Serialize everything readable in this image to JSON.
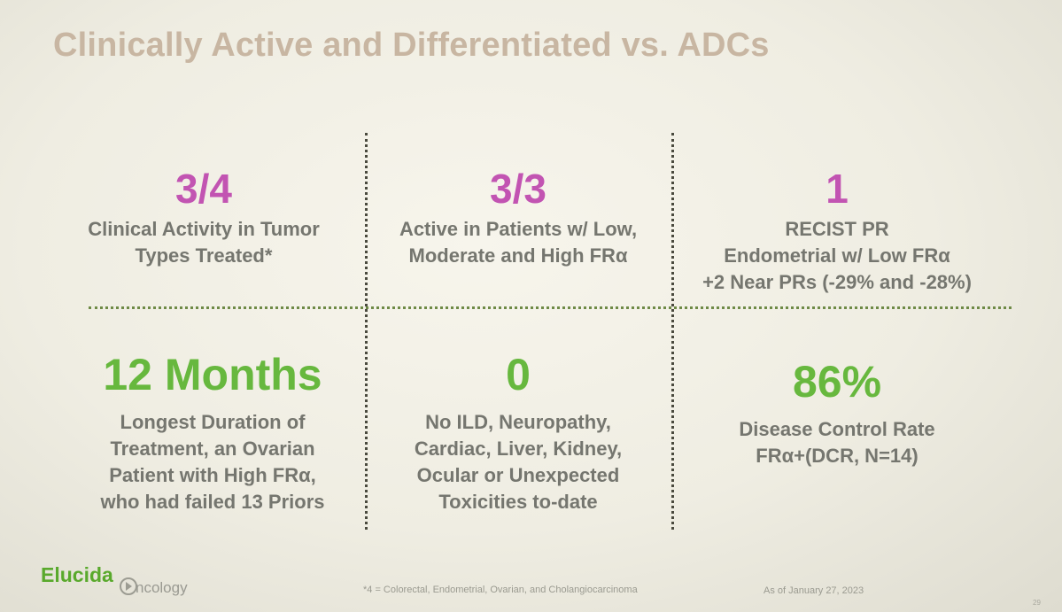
{
  "slide": {
    "title": "Clinically Active and Differentiated vs. ADCs",
    "stats": [
      {
        "value": "3/4",
        "color": "#c254b2",
        "lines": [
          "Clinical Activity in Tumor",
          "Types Treated*"
        ]
      },
      {
        "value": "3/3",
        "color": "#c254b2",
        "lines": [
          "Active in Patients w/ Low,",
          "Moderate and High FRα"
        ]
      },
      {
        "value": "1",
        "color": "#c254b2",
        "lines": [
          "RECIST PR",
          "Endometrial w/ Low FRα",
          "+2 Near PRs (-29% and -28%)"
        ]
      },
      {
        "value": "12 Months",
        "color": "#67b83e",
        "lines": [
          "Longest Duration of",
          "Treatment, an Ovarian",
          "Patient with High FRα,",
          "who had failed 13 Priors"
        ]
      },
      {
        "value": "0",
        "color": "#67b83e",
        "lines": [
          "No ILD, Neuropathy,",
          "Cardiac, Liver, Kidney,",
          "Ocular or Unexpected",
          "Toxicities to-date"
        ]
      },
      {
        "value": "86%",
        "color": "#67b83e",
        "lines": [
          "Disease Control Rate",
          "FRα+(DCR, N=14)"
        ]
      }
    ],
    "footer": {
      "logo_main": "Elucida",
      "logo_sub": "ncology",
      "footnote": "*4 = Colorectal, Endometrial, Ovarian, and Cholangiocarcinoma",
      "as_of": "As of January 27, 2023",
      "page_number": "29"
    }
  }
}
